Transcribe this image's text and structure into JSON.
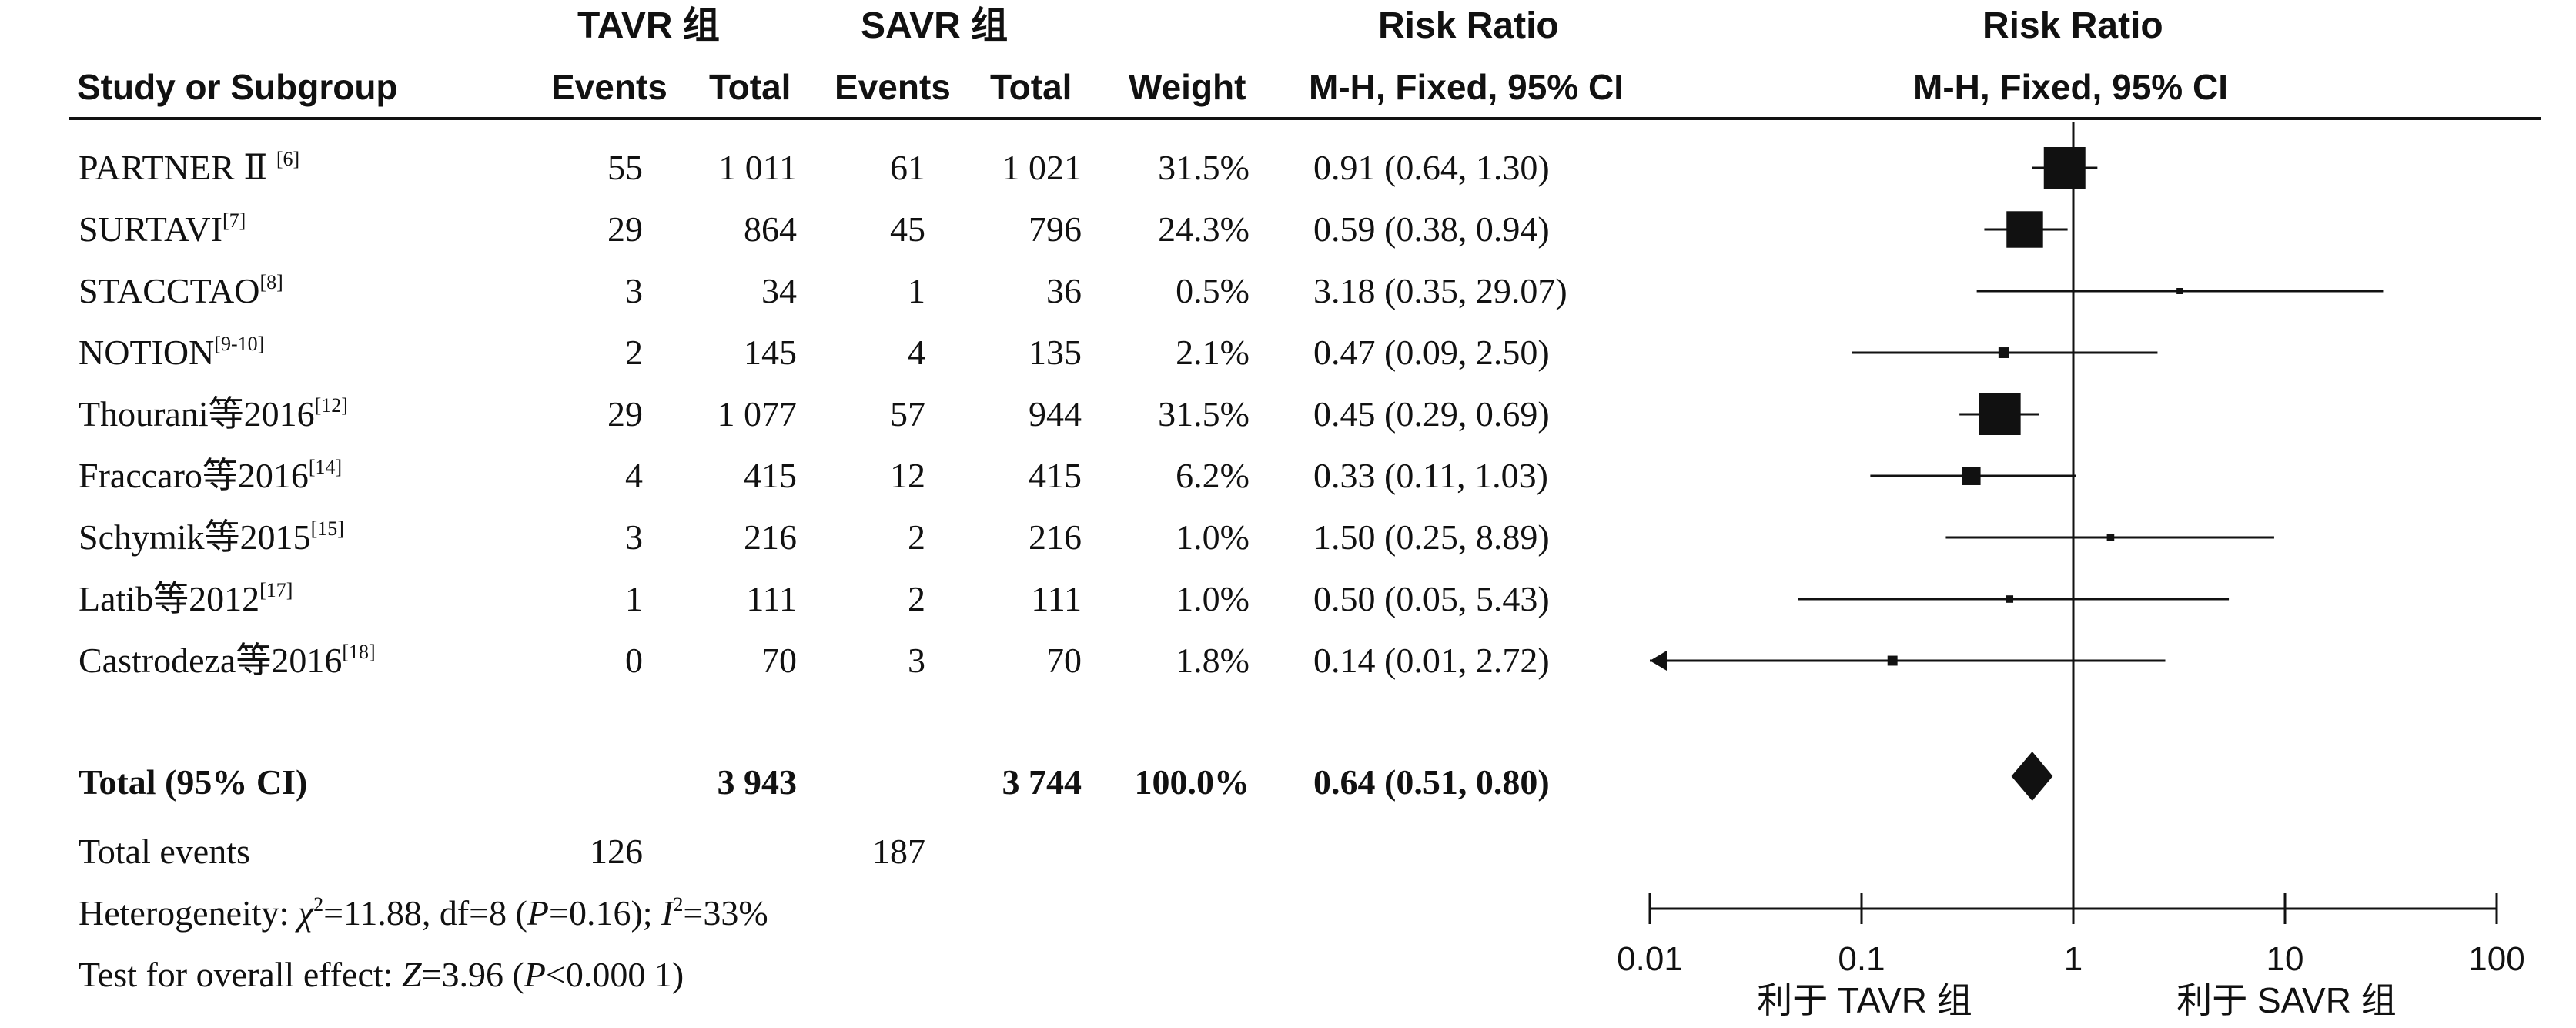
{
  "headers": {
    "group_tavr": "TAVR 组",
    "group_savr": "SAVR 组",
    "risk_ratio_table": "Risk Ratio",
    "risk_ratio_plot": "Risk Ratio",
    "study": "Study or Subgroup",
    "tavr_events": "Events",
    "tavr_total": "Total",
    "savr_events": "Events",
    "savr_total": "Total",
    "weight": "Weight",
    "method_table": "M-H, Fixed, 95% CI",
    "method_plot": "M-H, Fixed, 95% CI"
  },
  "studies": [
    {
      "name": "PARTNER Ⅱ ",
      "ref": "[6]",
      "tavr_events": "55",
      "tavr_total": "1 011",
      "savr_events": "61",
      "savr_total": "1 021",
      "weight": "31.5%",
      "ci_text": "0.91 (0.64, 1.30)"
    },
    {
      "name": "SURTAVI",
      "ref": "[7]",
      "tavr_events": "29",
      "tavr_total": "864",
      "savr_events": "45",
      "savr_total": "796",
      "weight": "24.3%",
      "ci_text": "0.59 (0.38, 0.94)"
    },
    {
      "name": "STACCTAO",
      "ref": "[8]",
      "tavr_events": "3",
      "tavr_total": "34",
      "savr_events": "1",
      "savr_total": "36",
      "weight": "0.5%",
      "ci_text": "3.18 (0.35, 29.07)"
    },
    {
      "name": "NOTION",
      "ref": "[9-10]",
      "tavr_events": "2",
      "tavr_total": "145",
      "savr_events": "4",
      "savr_total": "135",
      "weight": "2.1%",
      "ci_text": "0.47 (0.09, 2.50)"
    },
    {
      "name": "Thourani等2016",
      "ref": "[12]",
      "tavr_events": "29",
      "tavr_total": "1 077",
      "savr_events": "57",
      "savr_total": "944",
      "weight": "31.5%",
      "ci_text": "0.45 (0.29, 0.69)"
    },
    {
      "name": "Fraccaro等2016",
      "ref": "[14]",
      "tavr_events": "4",
      "tavr_total": "415",
      "savr_events": "12",
      "savr_total": "415",
      "weight": "6.2%",
      "ci_text": "0.33 (0.11, 1.03)"
    },
    {
      "name": "Schymik等2015",
      "ref": "[15]",
      "tavr_events": "3",
      "tavr_total": "216",
      "savr_events": "2",
      "savr_total": "216",
      "weight": "1.0%",
      "ci_text": "1.50 (0.25, 8.89)"
    },
    {
      "name": "Latib等2012",
      "ref": "[17]",
      "tavr_events": "1",
      "tavr_total": "111",
      "savr_events": "2",
      "savr_total": "111",
      "weight": "1.0%",
      "ci_text": "0.50 (0.05, 5.43)"
    },
    {
      "name": "Castrodeza等2016",
      "ref": "[18]",
      "tavr_events": "0",
      "tavr_total": "70",
      "savr_events": "3",
      "savr_total": "70",
      "weight": "1.8%",
      "ci_text": "0.14 (0.01, 2.72)"
    }
  ],
  "total": {
    "label": "Total (95% CI)",
    "tavr_total": "3 943",
    "savr_total": "3 744",
    "weight": "100.0%",
    "ci_text": "0.64 (0.51, 0.80)"
  },
  "total_events": {
    "label": "Total events",
    "tavr": "126",
    "savr": "187"
  },
  "heterogeneity": {
    "prefix": "Heterogeneity: ",
    "chi_sym": "χ",
    "chi_rest": "=11.88, df=8 (",
    "p_sym": "P",
    "p_rest": "=0.16); ",
    "i_sym": "I",
    "i_rest": "=33%"
  },
  "overall": {
    "prefix": "Test for overall effect: ",
    "z_sym": "Z",
    "z_rest": "=3.96 (",
    "p_sym": "P",
    "p_rest": "<0.000 1)"
  },
  "chart_data": {
    "type": "forest",
    "scale": "log",
    "xlim": [
      0.01,
      100
    ],
    "reference_line": 1,
    "ticks": [
      0.01,
      0.1,
      1,
      10,
      100
    ],
    "tick_labels": [
      "0.01",
      "0.1",
      "1",
      "10",
      "100"
    ],
    "favours_left": "利于 TAVR 组",
    "favours_right": "利于 SAVR 组",
    "studies": [
      {
        "label": "PARTNER Ⅱ",
        "rr": 0.91,
        "lo": 0.64,
        "hi": 1.3,
        "weight": 31.5
      },
      {
        "label": "SURTAVI",
        "rr": 0.59,
        "lo": 0.38,
        "hi": 0.94,
        "weight": 24.3
      },
      {
        "label": "STACCTAO",
        "rr": 3.18,
        "lo": 0.35,
        "hi": 29.07,
        "weight": 0.5
      },
      {
        "label": "NOTION",
        "rr": 0.47,
        "lo": 0.09,
        "hi": 2.5,
        "weight": 2.1
      },
      {
        "label": "Thourani等2016",
        "rr": 0.45,
        "lo": 0.29,
        "hi": 0.69,
        "weight": 31.5
      },
      {
        "label": "Fraccaro等2016",
        "rr": 0.33,
        "lo": 0.11,
        "hi": 1.03,
        "weight": 6.2
      },
      {
        "label": "Schymik等2015",
        "rr": 1.5,
        "lo": 0.25,
        "hi": 8.89,
        "weight": 1.0
      },
      {
        "label": "Latib等2012",
        "rr": 0.5,
        "lo": 0.05,
        "hi": 5.43,
        "weight": 1.0
      },
      {
        "label": "Castrodeza等2016",
        "rr": 0.14,
        "lo": 0.01,
        "hi": 2.72,
        "weight": 1.8
      }
    ],
    "pooled": {
      "label": "Total (95% CI)",
      "rr": 0.64,
      "lo": 0.51,
      "hi": 0.8
    }
  }
}
